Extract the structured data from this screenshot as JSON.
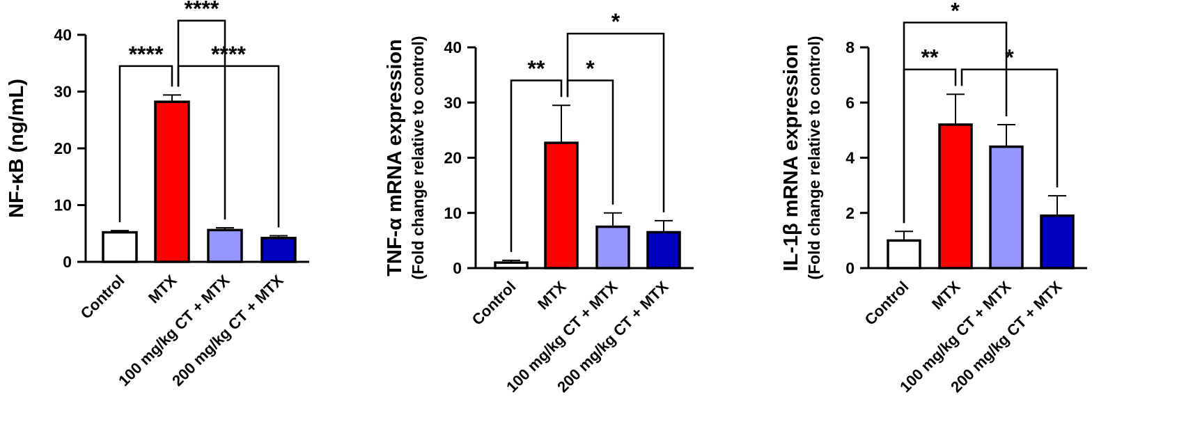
{
  "chart_data": [
    {
      "type": "bar",
      "ylabel": "NF-κB (ng/mL)",
      "ylabel2": "",
      "categories": [
        "Control",
        "MTX",
        "100 mg/kg CT + MTX",
        "200 mg/kg CT + MTX"
      ],
      "values": [
        5.2,
        28.2,
        5.6,
        4.2
      ],
      "errors": [
        0.3,
        1.2,
        0.4,
        0.4
      ],
      "colors": [
        "#ffffff",
        "#ff0000",
        "#9696ff",
        "#0000c0"
      ],
      "ylim": [
        0,
        40
      ],
      "yticks": [
        0,
        10,
        20,
        30,
        40
      ],
      "yticklabels": [
        "0",
        "10",
        "20",
        "30",
        "40"
      ],
      "significance": [
        {
          "from": 0,
          "to": 1,
          "label": "****",
          "y": 34.5
        },
        {
          "from": 1,
          "to": 3,
          "label": "****",
          "y": 34.5
        },
        {
          "from": 1,
          "to": 2,
          "label": "****",
          "y": 42.5
        }
      ]
    },
    {
      "type": "bar",
      "ylabel": "TNF-α mRNA expression",
      "ylabel2": "(Fold change relative to control)",
      "categories": [
        "Control",
        "MTX",
        "100 mg/kg CT + MTX",
        "200 mg/kg CT + MTX"
      ],
      "values": [
        1.0,
        22.7,
        7.5,
        6.5
      ],
      "errors": [
        0.4,
        6.8,
        2.5,
        2.1
      ],
      "colors": [
        "#ffffff",
        "#ff0000",
        "#9696ff",
        "#0000c0"
      ],
      "ylim": [
        0,
        40
      ],
      "yticks": [
        0,
        10,
        20,
        30,
        40
      ],
      "yticklabels": [
        "0",
        "10",
        "20",
        "30",
        "40"
      ],
      "significance": [
        {
          "from": 0,
          "to": 1,
          "label": "**",
          "y": 34.0
        },
        {
          "from": 1,
          "to": 2,
          "label": "*",
          "y": 34.0
        },
        {
          "from": 1,
          "to": 3,
          "label": "*",
          "y": 42.5
        }
      ]
    },
    {
      "type": "bar",
      "ylabel": "IL-1β mRNA expression",
      "ylabel2": "(Fold change relative to control)",
      "categories": [
        "Control",
        "MTX",
        "100 mg/kg CT + MTX",
        "200 mg/kg CT + MTX"
      ],
      "values": [
        1.0,
        5.2,
        4.4,
        1.9
      ],
      "errors": [
        0.33,
        1.1,
        0.8,
        0.72
      ],
      "colors": [
        "#ffffff",
        "#ff0000",
        "#9696ff",
        "#0000c0"
      ],
      "ylim": [
        0,
        8
      ],
      "yticks": [
        0,
        2,
        4,
        6,
        8
      ],
      "yticklabels": [
        "0",
        "2",
        "4",
        "6",
        "8"
      ],
      "significance": [
        {
          "from": 0,
          "to": 1,
          "label": "**",
          "y": 7.2
        },
        {
          "from": 1,
          "to": 3,
          "label": "*",
          "y": 7.2
        },
        {
          "from": 0,
          "to": 2,
          "label": "*",
          "y": 8.9
        }
      ]
    }
  ]
}
